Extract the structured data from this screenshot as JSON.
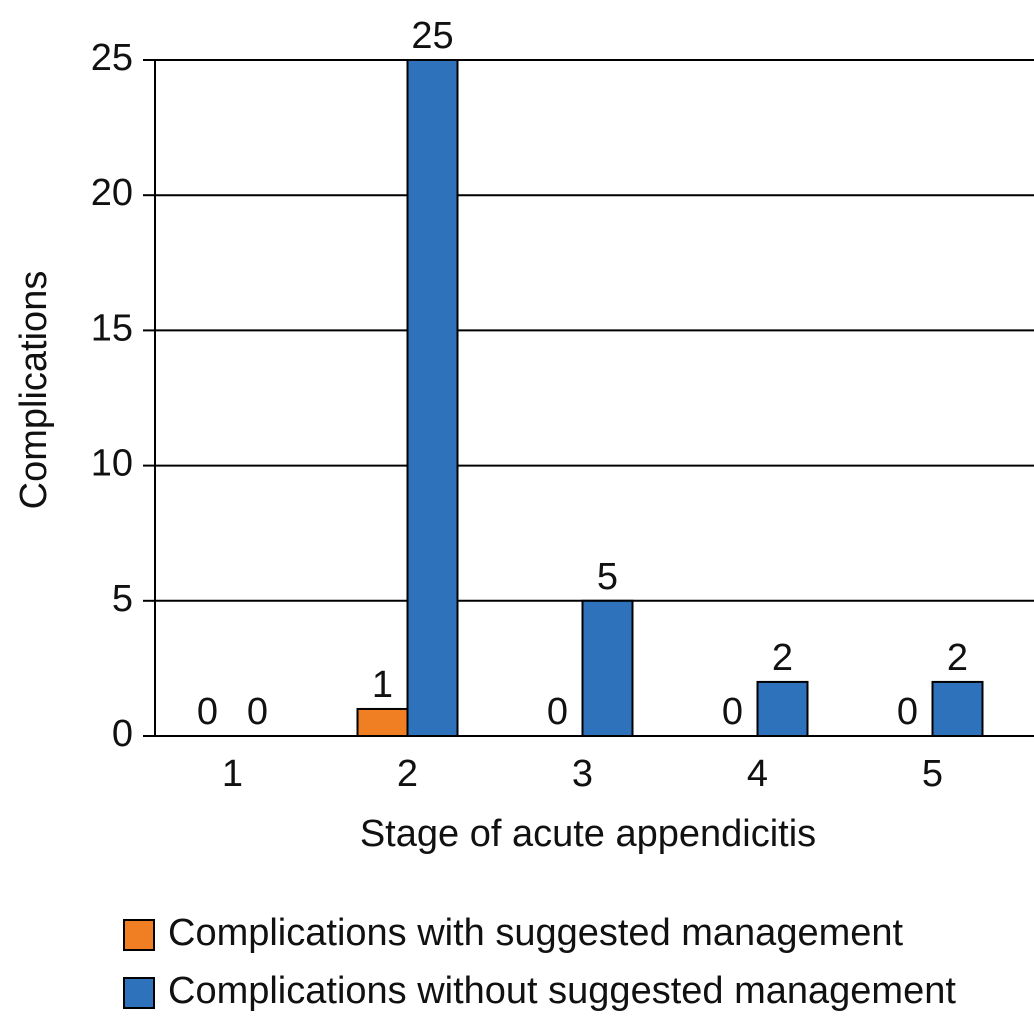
{
  "chart_data": {
    "type": "bar",
    "x_label": "Stage of acute appendicitis",
    "y_label": "Complications",
    "categories": [
      "1",
      "2",
      "3",
      "4",
      "5"
    ],
    "series": [
      {
        "name": "Complications with suggested management",
        "color": "#f07f23",
        "values": [
          0,
          1,
          0,
          0,
          0
        ]
      },
      {
        "name": "Complications without suggested management",
        "color": "#2e72bb",
        "values": [
          0,
          25,
          5,
          2,
          2
        ]
      }
    ],
    "ylim": [
      0,
      25
    ],
    "yticks": [
      0,
      5,
      10,
      15,
      20,
      25
    ],
    "grid": true
  }
}
